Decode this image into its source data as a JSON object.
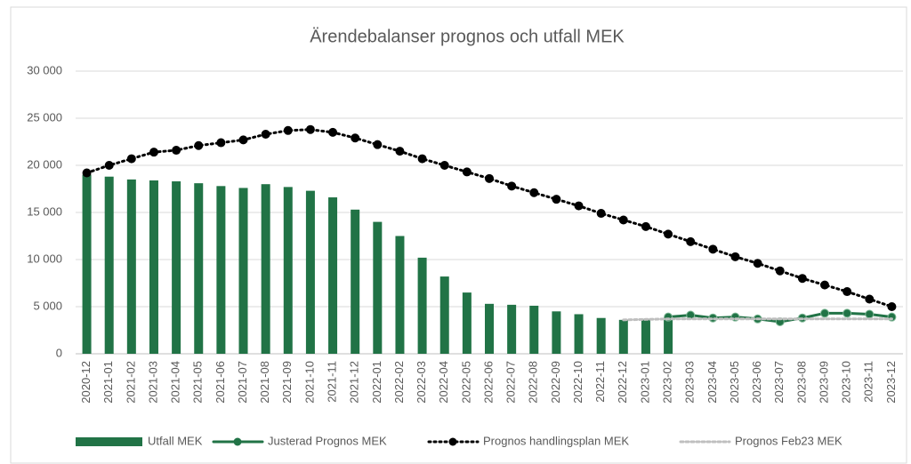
{
  "chart_data": {
    "type": "bar_line",
    "title": "Ärendebalanser prognos och utfall MEK",
    "categories": [
      "2020-12",
      "2021-01",
      "2021-02",
      "2021-03",
      "2021-04",
      "2021-05",
      "2021-06",
      "2021-07",
      "2021-08",
      "2021-09",
      "2021-10",
      "2021-11",
      "2021-12",
      "2022-01",
      "2022-02",
      "2022-03",
      "2022-04",
      "2022-05",
      "2022-06",
      "2022-07",
      "2022-08",
      "2022-09",
      "2022-10",
      "2022-11",
      "2022-12",
      "2023-01",
      "2023-02",
      "2023-03",
      "2023-04",
      "2023-05",
      "2023-06",
      "2023-07",
      "2023-08",
      "2023-09",
      "2023-10",
      "2023-11",
      "2023-12"
    ],
    "series": [
      {
        "name": "Utfall MEK",
        "type": "bar",
        "color": "#217346",
        "values": [
          19000,
          18800,
          18500,
          18400,
          18300,
          18100,
          17800,
          17600,
          18000,
          17700,
          17300,
          16600,
          15300,
          14000,
          12500,
          10200,
          8200,
          6500,
          5300,
          5200,
          5100,
          4500,
          4200,
          3800,
          3600,
          3700,
          3900,
          null,
          null,
          null,
          null,
          null,
          null,
          null,
          null,
          null,
          null
        ]
      },
      {
        "name": "Justerad Prognos MEK",
        "type": "line",
        "style": "solid",
        "marker": true,
        "color": "#217346",
        "values": [
          null,
          null,
          null,
          null,
          null,
          null,
          null,
          null,
          null,
          null,
          null,
          null,
          null,
          null,
          null,
          null,
          null,
          null,
          null,
          null,
          null,
          null,
          null,
          null,
          null,
          null,
          3900,
          4100,
          3800,
          3900,
          3700,
          3400,
          3800,
          4300,
          4300,
          4200,
          3900
        ]
      },
      {
        "name": "Prognos  handlingsplan MEK",
        "type": "line",
        "style": "dotted",
        "marker": true,
        "color": "#000000",
        "values": [
          19200,
          20000,
          20700,
          21400,
          21600,
          22100,
          22400,
          22700,
          23300,
          23700,
          23800,
          23500,
          22900,
          22200,
          21500,
          20700,
          20000,
          19300,
          18600,
          17800,
          17100,
          16400,
          15700,
          14900,
          14200,
          13500,
          12700,
          11900,
          11100,
          10300,
          9600,
          8800,
          8000,
          7300,
          6600,
          5800,
          5000
        ]
      },
      {
        "name": "Prognos Feb23 MEK",
        "type": "line",
        "style": "dotted",
        "marker": false,
        "color": "#bfbfbf",
        "values": [
          null,
          null,
          null,
          null,
          null,
          null,
          null,
          null,
          null,
          null,
          null,
          null,
          null,
          null,
          null,
          null,
          null,
          null,
          null,
          null,
          null,
          null,
          null,
          null,
          3600,
          3650,
          3700,
          3700,
          3700,
          3700,
          3700,
          3700,
          3700,
          3700,
          3700,
          3700,
          3700
        ]
      }
    ],
    "ylim": [
      0,
      30000
    ],
    "yticks": [
      0,
      {
        "value": 5000,
        "label": "5 000"
      },
      {
        "value": 10000,
        "label": "10 000"
      },
      {
        "value": 15000,
        "label": "15 000"
      },
      {
        "value": 20000,
        "label": "20 000"
      },
      {
        "value": 25000,
        "label": "25 000"
      },
      {
        "value": 30000,
        "label": "30 000"
      }
    ],
    "grid": true,
    "legend": "bottom"
  }
}
